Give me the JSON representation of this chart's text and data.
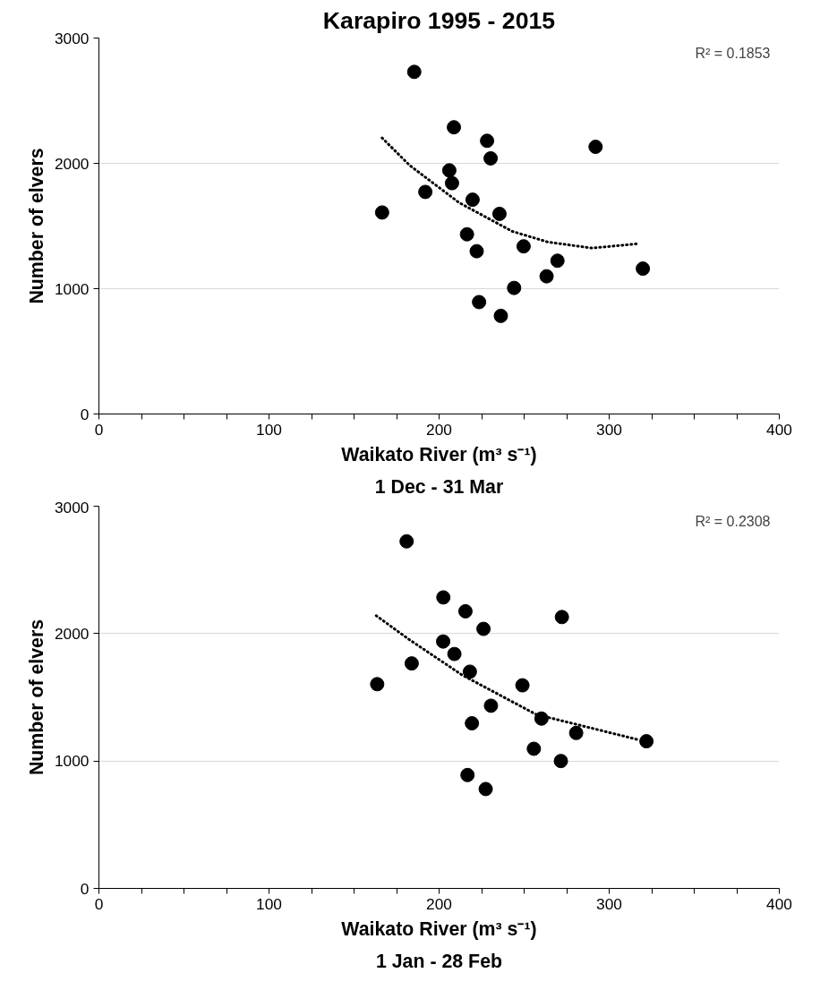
{
  "chart_data": [
    {
      "type": "scatter",
      "title": "Karapiro 1995 - 2015",
      "xlabel": "Waikato River (m³ s⁻¹)\n1 Dec - 31 Mar",
      "ylabel": "Number of elvers",
      "annotations": [
        "R² = 0.1853"
      ],
      "xlim": [
        0,
        400
      ],
      "ylim": [
        0,
        3000
      ],
      "xticks": [
        0,
        {
          "value": 25,
          "label": null
        },
        {
          "value": 50,
          "label": null
        },
        {
          "value": 75,
          "label": null
        },
        100,
        {
          "value": 125,
          "label": null
        },
        {
          "value": 150,
          "label": null
        },
        {
          "value": 175,
          "label": null
        },
        200,
        {
          "value": 225,
          "label": null
        },
        {
          "value": 250,
          "label": null
        },
        {
          "value": 275,
          "label": null
        },
        300,
        {
          "value": 325,
          "label": null
        },
        {
          "value": 350,
          "label": null
        },
        {
          "value": 375,
          "label": null
        },
        400
      ],
      "yticks": [
        0,
        1000,
        2000,
        3000
      ],
      "grid": "y",
      "marker": "circle",
      "series": [
        {
          "color": "#000000",
          "x": [
            166.5,
            185.4,
            208.7,
            228.2,
            230.3,
            292,
            206,
            207.6,
            191.9,
            219.7,
            235.5,
            216.4,
            222.1,
            249.7,
            269.6,
            263.2,
            319.8,
            244.1,
            223.5,
            236.3
          ],
          "values": [
            1608,
            2730,
            2288,
            2180,
            2040,
            2132,
            1944,
            1842,
            1772,
            1710,
            1597,
            1434,
            1299,
            1338,
            1223,
            1099,
            1160,
            1006,
            893,
            783
          ]
        },
        {
          "type": "line",
          "color": "#000000",
          "marker": "none",
          "line_style": "dotted",
          "x": [
            166.5,
            182.8,
            211.6,
            243.1,
            264,
            290,
            316.5
          ],
          "values": [
            2203,
            1983,
            1688,
            1457,
            1372,
            1324,
            1358
          ]
        }
      ]
    },
    {
      "type": "scatter",
      "xlabel": "Waikato River (m³ s⁻¹)\n1 Jan - 28 Feb",
      "ylabel": "Number of elvers",
      "annotations": [
        "R² = 0.2308"
      ],
      "xlim": [
        0,
        400
      ],
      "ylim": [
        0,
        3000
      ],
      "xticks": [
        0,
        {
          "value": 25,
          "label": null
        },
        {
          "value": 50,
          "label": null
        },
        {
          "value": 75,
          "label": null
        },
        100,
        {
          "value": 125,
          "label": null
        },
        {
          "value": 150,
          "label": null
        },
        {
          "value": 175,
          "label": null
        },
        200,
        {
          "value": 225,
          "label": null
        },
        {
          "value": 250,
          "label": null
        },
        {
          "value": 275,
          "label": null
        },
        300,
        {
          "value": 325,
          "label": null
        },
        {
          "value": 350,
          "label": null
        },
        {
          "value": 375,
          "label": null
        },
        400
      ],
      "yticks": [
        0,
        1000,
        2000,
        3000
      ],
      "grid": "y",
      "marker": "circle",
      "series": [
        {
          "color": "#000000",
          "x": [
            163.6,
            180.9,
            202.5,
            215.5,
            226.1,
            272.2,
            202.4,
            209,
            183.9,
            218.1,
            249,
            230.5,
            219.3,
            260.2,
            280.6,
            255.7,
            321.9,
            271.6,
            216.7,
            227.4
          ],
          "values": [
            1603,
            2724,
            2284,
            2175,
            2037,
            2130,
            1938,
            1840,
            1766,
            1701,
            1594,
            1434,
            1296,
            1333,
            1220,
            1096,
            1155,
            1000,
            890,
            780
          ]
        },
        {
          "type": "line",
          "color": "#000000",
          "marker": "none",
          "line_style": "dotted",
          "x": [
            163,
            181.9,
            213.4,
            257,
            316.5
          ],
          "values": [
            2141,
            1958,
            1676,
            1366,
            1169
          ]
        }
      ]
    }
  ]
}
